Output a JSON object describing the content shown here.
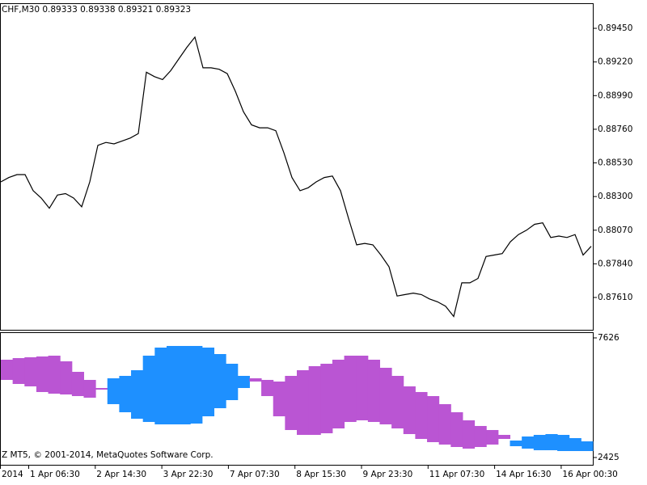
{
  "chart_data": [
    {
      "type": "line",
      "title": "CHF,M30  0.89333 0.89338 0.89321 0.89323",
      "color": "#000000",
      "ylim": [
        0.87389,
        0.89616
      ],
      "yticks": [
        {
          "value": 0.8945,
          "label": "0.89450"
        },
        {
          "value": 0.8922,
          "label": "0.89220"
        },
        {
          "value": 0.8899,
          "label": "0.88990"
        },
        {
          "value": 0.8876,
          "label": "0.88760"
        },
        {
          "value": 0.8853,
          "label": "0.88530"
        },
        {
          "value": 0.883,
          "label": "0.88300"
        },
        {
          "value": 0.8807,
          "label": "0.88070"
        },
        {
          "value": 0.8784,
          "label": "0.87840"
        },
        {
          "value": 0.8761,
          "label": "0.87610"
        }
      ],
      "values": [
        0.884,
        0.8843,
        0.8845,
        0.8845,
        0.8834,
        0.8829,
        0.8822,
        0.8831,
        0.8832,
        0.8829,
        0.8823,
        0.884,
        0.8865,
        0.8867,
        0.8866,
        0.8868,
        0.887,
        0.8873,
        0.8915,
        0.8912,
        0.891,
        0.8916,
        0.8924,
        0.8932,
        0.8939,
        0.8918,
        0.8918,
        0.8917,
        0.8914,
        0.8902,
        0.8888,
        0.8879,
        0.8877,
        0.8877,
        0.8875,
        0.886,
        0.8843,
        0.8834,
        0.8836,
        0.884,
        0.8843,
        0.8844,
        0.8834,
        0.8815,
        0.8797,
        0.8798,
        0.8797,
        0.879,
        0.8782,
        0.8762,
        0.8763,
        0.8764,
        0.8763,
        0.876,
        0.8758,
        0.8755,
        0.8748,
        0.8771,
        0.8771,
        0.8774,
        0.8789,
        0.879,
        0.8791,
        0.8799,
        0.8804,
        0.8807,
        0.8811,
        0.8812,
        0.8802,
        0.8803,
        0.8802,
        0.8804,
        0.879,
        0.8796
      ],
      "time_labels": [
        "2014",
        "1 Apr 06:30",
        "2 Apr 14:30",
        "3 Apr 22:30",
        "7 Apr 07:30",
        "8 Apr 15:30",
        "9 Apr 23:30",
        "11 Apr 07:30",
        "14 Apr 16:30",
        "16 Apr 00:30"
      ]
    },
    {
      "type": "cloud",
      "note_text": "Z MT5, © 2001-2014, MetaQuotes Software Corp.",
      "ylim": [
        2425,
        7626
      ],
      "yticks": [
        7626,
        2425
      ],
      "series": [
        {
          "color": "#ba55d3",
          "values": [
            6677,
            6747,
            6783,
            6818,
            6853,
            6607,
            6150,
            5799,
            5447,
            4745,
            4393,
            4112,
            3971,
            3866,
            3866,
            3866,
            3901,
            4217,
            4569,
            4920,
            5447,
            5869,
            5799,
            5728,
            5974,
            6220,
            6396,
            6502,
            6677,
            6853,
            6853,
            6677,
            6326,
            5974,
            5518,
            5272,
            5096,
            4745,
            4393,
            4042,
            3796,
            3620,
            3409,
            2917,
            2812,
            2742,
            2742,
            2706,
            2706,
            2706
          ]
        },
        {
          "color": "#1e90ff",
          "values": [
            5799,
            5623,
            5518,
            5272,
            5201,
            5166,
            5096,
            5026,
            5377,
            5869,
            5974,
            6220,
            6853,
            7204,
            7275,
            7275,
            7275,
            7204,
            6923,
            6502,
            5974,
            5728,
            5096,
            4217,
            3620,
            3409,
            3409,
            3479,
            3690,
            3971,
            4042,
            3971,
            3866,
            3690,
            3444,
            3233,
            3093,
            2988,
            2882,
            2812,
            2882,
            2988,
            3233,
            3163,
            3339,
            3409,
            3444,
            3409,
            3269,
            3128
          ]
        }
      ]
    }
  ]
}
